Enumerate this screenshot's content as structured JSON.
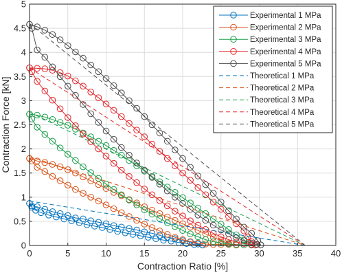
{
  "chart_data": {
    "type": "line",
    "title": "",
    "xlabel": "Contraction Ratio [%]",
    "ylabel": "Contraction Force [kN]",
    "xlim": [
      0,
      40
    ],
    "ylim": [
      0,
      5
    ],
    "xticks": [
      "0",
      "5",
      "10",
      "15",
      "20",
      "25",
      "30",
      "35",
      "40"
    ],
    "yticks": [
      "0",
      "0.5",
      "1",
      "1.5",
      "2",
      "2.5",
      "3",
      "3.5",
      "4",
      "4.5",
      "5"
    ],
    "grid": true,
    "legend_position": "top-right",
    "series": [
      {
        "name": "Experimental 1 MPa",
        "style": "solid-circle",
        "color": "#0072BD",
        "loading": [
          [
            0,
            0.87
          ],
          [
            0.3,
            0.82
          ],
          [
            1,
            0.8
          ],
          [
            2,
            0.75
          ],
          [
            3,
            0.7
          ],
          [
            4,
            0.66
          ],
          [
            5,
            0.62
          ],
          [
            6,
            0.57
          ],
          [
            7,
            0.55
          ],
          [
            8,
            0.51
          ],
          [
            9,
            0.48
          ],
          [
            10,
            0.45
          ],
          [
            11,
            0.41
          ],
          [
            12,
            0.38
          ],
          [
            13,
            0.35
          ],
          [
            14,
            0.32
          ],
          [
            15,
            0.28
          ],
          [
            16,
            0.25
          ],
          [
            17,
            0.21
          ],
          [
            18,
            0.17
          ],
          [
            19,
            0.14
          ],
          [
            20,
            0.1
          ],
          [
            21,
            0.07
          ],
          [
            22,
            0.03
          ],
          [
            22.6,
            0.01
          ]
        ],
        "unloading": [
          [
            22.6,
            0.01
          ],
          [
            21.5,
            0.02
          ],
          [
            20.5,
            0.04
          ],
          [
            19.5,
            0.06
          ],
          [
            18.5,
            0.09
          ],
          [
            17.5,
            0.11
          ],
          [
            16.5,
            0.14
          ],
          [
            15.5,
            0.17
          ],
          [
            14.5,
            0.2
          ],
          [
            13.5,
            0.23
          ],
          [
            12.5,
            0.26
          ],
          [
            11.5,
            0.29
          ],
          [
            10.5,
            0.33
          ],
          [
            9.5,
            0.37
          ],
          [
            8.5,
            0.4
          ],
          [
            7.5,
            0.43
          ],
          [
            6.5,
            0.47
          ],
          [
            5.5,
            0.51
          ],
          [
            4.5,
            0.55
          ],
          [
            3.5,
            0.59
          ],
          [
            2.5,
            0.63
          ],
          [
            1.5,
            0.68
          ],
          [
            0.8,
            0.73
          ],
          [
            0.3,
            0.79
          ],
          [
            0,
            0.87
          ]
        ]
      },
      {
        "name": "Experimental 2 MPa",
        "style": "solid-circle",
        "color": "#D95319",
        "loading": [
          [
            0,
            1.8
          ],
          [
            0.3,
            1.75
          ],
          [
            1,
            1.62
          ],
          [
            2,
            1.53
          ],
          [
            3,
            1.43
          ],
          [
            4,
            1.34
          ],
          [
            5,
            1.25
          ],
          [
            6,
            1.16
          ],
          [
            7,
            1.08
          ],
          [
            8,
            1.0
          ],
          [
            9,
            0.92
          ],
          [
            10,
            0.84
          ],
          [
            11,
            0.76
          ],
          [
            12,
            0.68
          ],
          [
            13,
            0.6
          ],
          [
            14,
            0.52
          ],
          [
            15,
            0.44
          ],
          [
            16,
            0.37
          ],
          [
            17,
            0.3
          ],
          [
            18,
            0.23
          ],
          [
            19,
            0.17
          ],
          [
            20,
            0.12
          ],
          [
            21,
            0.08
          ],
          [
            22,
            0.05
          ],
          [
            23,
            0.03
          ],
          [
            24,
            0.02
          ],
          [
            25,
            0.02
          ],
          [
            26,
            0.02
          ],
          [
            27,
            0.01
          ]
        ],
        "unloading": [
          [
            27,
            0.01
          ],
          [
            26,
            0.04
          ],
          [
            25,
            0.1
          ],
          [
            24,
            0.17
          ],
          [
            23,
            0.24
          ],
          [
            22,
            0.31
          ],
          [
            21,
            0.38
          ],
          [
            20,
            0.45
          ],
          [
            19,
            0.52
          ],
          [
            18,
            0.59
          ],
          [
            17,
            0.66
          ],
          [
            16,
            0.73
          ],
          [
            15,
            0.8
          ],
          [
            14,
            0.88
          ],
          [
            13,
            0.95
          ],
          [
            12,
            1.03
          ],
          [
            11,
            1.1
          ],
          [
            10,
            1.18
          ],
          [
            9,
            1.26
          ],
          [
            8,
            1.34
          ],
          [
            7,
            1.42
          ],
          [
            6,
            1.5
          ],
          [
            5,
            1.57
          ],
          [
            4,
            1.63
          ],
          [
            3,
            1.68
          ],
          [
            2,
            1.72
          ],
          [
            1,
            1.75
          ],
          [
            0,
            1.8
          ]
        ]
      },
      {
        "name": "Experimental 3 MPa",
        "style": "solid-circle",
        "color": "#1B9E4B",
        "loading": [
          [
            0,
            2.72
          ],
          [
            0.3,
            2.62
          ],
          [
            1,
            2.45
          ],
          [
            2,
            2.3
          ],
          [
            3,
            2.16
          ],
          [
            4,
            2.02
          ],
          [
            5,
            1.89
          ],
          [
            6,
            1.76
          ],
          [
            7,
            1.63
          ],
          [
            8,
            1.51
          ],
          [
            9,
            1.39
          ],
          [
            10,
            1.27
          ],
          [
            11,
            1.16
          ],
          [
            12,
            1.05
          ],
          [
            13,
            0.94
          ],
          [
            14,
            0.84
          ],
          [
            15,
            0.74
          ],
          [
            16,
            0.65
          ],
          [
            17,
            0.56
          ],
          [
            18,
            0.47
          ],
          [
            19,
            0.39
          ],
          [
            20,
            0.31
          ],
          [
            21,
            0.24
          ],
          [
            22,
            0.18
          ],
          [
            23,
            0.12
          ],
          [
            24,
            0.08
          ],
          [
            25,
            0.05
          ],
          [
            26,
            0.03
          ],
          [
            27,
            0.02
          ],
          [
            28,
            0.01
          ],
          [
            29,
            0.01
          ]
        ],
        "unloading": [
          [
            29,
            0.01
          ],
          [
            28.5,
            0.05
          ],
          [
            28,
            0.12
          ],
          [
            27,
            0.22
          ],
          [
            26,
            0.33
          ],
          [
            25,
            0.44
          ],
          [
            24,
            0.55
          ],
          [
            23,
            0.66
          ],
          [
            22,
            0.77
          ],
          [
            21,
            0.88
          ],
          [
            20,
            0.99
          ],
          [
            19,
            1.1
          ],
          [
            18,
            1.21
          ],
          [
            17,
            1.32
          ],
          [
            16,
            1.43
          ],
          [
            15,
            1.54
          ],
          [
            14,
            1.65
          ],
          [
            13,
            1.76
          ],
          [
            12,
            1.87
          ],
          [
            11,
            1.97
          ],
          [
            10,
            2.07
          ],
          [
            9,
            2.16
          ],
          [
            8,
            2.25
          ],
          [
            7,
            2.33
          ],
          [
            6,
            2.41
          ],
          [
            5,
            2.49
          ],
          [
            4,
            2.55
          ],
          [
            3,
            2.61
          ],
          [
            2,
            2.66
          ],
          [
            1,
            2.7
          ],
          [
            0,
            2.72
          ]
        ]
      },
      {
        "name": "Experimental 4 MPa",
        "style": "solid-circle",
        "color": "#E3262A",
        "loading": [
          [
            0,
            3.68
          ],
          [
            0.3,
            3.6
          ],
          [
            1,
            3.4
          ],
          [
            2,
            3.2
          ],
          [
            3,
            3.01
          ],
          [
            4,
            2.83
          ],
          [
            5,
            2.65
          ],
          [
            6,
            2.48
          ],
          [
            7,
            2.31
          ],
          [
            8,
            2.15
          ],
          [
            9,
            2.0
          ],
          [
            10,
            1.85
          ],
          [
            11,
            1.7
          ],
          [
            12,
            1.56
          ],
          [
            13,
            1.43
          ],
          [
            14,
            1.3
          ],
          [
            15,
            1.17
          ],
          [
            16,
            1.05
          ],
          [
            17,
            0.93
          ],
          [
            18,
            0.82
          ],
          [
            19,
            0.71
          ],
          [
            20,
            0.61
          ],
          [
            21,
            0.51
          ],
          [
            22,
            0.42
          ],
          [
            23,
            0.33
          ],
          [
            24,
            0.25
          ],
          [
            25,
            0.18
          ],
          [
            26,
            0.12
          ],
          [
            27,
            0.07
          ],
          [
            28,
            0.04
          ],
          [
            29,
            0.02
          ],
          [
            29.5,
            0.01
          ]
        ],
        "unloading": [
          [
            29.5,
            0.01
          ],
          [
            29,
            0.08
          ],
          [
            28.5,
            0.18
          ],
          [
            28,
            0.3
          ],
          [
            27,
            0.45
          ],
          [
            26,
            0.6
          ],
          [
            25,
            0.75
          ],
          [
            24,
            0.9
          ],
          [
            23,
            1.05
          ],
          [
            22,
            1.2
          ],
          [
            21,
            1.35
          ],
          [
            20,
            1.5
          ],
          [
            19,
            1.65
          ],
          [
            18,
            1.8
          ],
          [
            17,
            1.95
          ],
          [
            16,
            2.1
          ],
          [
            15,
            2.25
          ],
          [
            14,
            2.39
          ],
          [
            13,
            2.53
          ],
          [
            12,
            2.67
          ],
          [
            11,
            2.8
          ],
          [
            10,
            2.93
          ],
          [
            9,
            3.06
          ],
          [
            8,
            3.18
          ],
          [
            7,
            3.3
          ],
          [
            6,
            3.41
          ],
          [
            5,
            3.51
          ],
          [
            4,
            3.58
          ],
          [
            3,
            3.63
          ],
          [
            2,
            3.66
          ],
          [
            1,
            3.67
          ],
          [
            0,
            3.68
          ]
        ]
      },
      {
        "name": "Experimental 5 MPa",
        "style": "solid-circle",
        "color": "#4D4D4D",
        "loading": [
          [
            0,
            4.58
          ],
          [
            0.3,
            4.5
          ],
          [
            1,
            4.05
          ],
          [
            2,
            3.9
          ],
          [
            3,
            3.7
          ],
          [
            4,
            3.5
          ],
          [
            5,
            3.3
          ],
          [
            6,
            3.11
          ],
          [
            7,
            2.92
          ],
          [
            8,
            2.73
          ],
          [
            9,
            2.55
          ],
          [
            10,
            2.37
          ],
          [
            11,
            2.2
          ],
          [
            12,
            2.03
          ],
          [
            13,
            1.87
          ],
          [
            14,
            1.71
          ],
          [
            15,
            1.56
          ],
          [
            16,
            1.41
          ],
          [
            17,
            1.27
          ],
          [
            18,
            1.13
          ],
          [
            19,
            1.0
          ],
          [
            20,
            0.87
          ],
          [
            21,
            0.75
          ],
          [
            22,
            0.63
          ],
          [
            23,
            0.52
          ],
          [
            24,
            0.42
          ],
          [
            25,
            0.32
          ],
          [
            26,
            0.24
          ],
          [
            27,
            0.16
          ],
          [
            28,
            0.1
          ],
          [
            29,
            0.05
          ],
          [
            29.7,
            0.02
          ],
          [
            30.2,
            0.01
          ]
        ],
        "unloading": [
          [
            30.2,
            0.01
          ],
          [
            29.8,
            0.1
          ],
          [
            29,
            0.25
          ],
          [
            28,
            0.38
          ],
          [
            27,
            0.55
          ],
          [
            26,
            0.72
          ],
          [
            25,
            0.9
          ],
          [
            24,
            1.08
          ],
          [
            23,
            1.26
          ],
          [
            22,
            1.44
          ],
          [
            21,
            1.62
          ],
          [
            20,
            1.8
          ],
          [
            19,
            1.98
          ],
          [
            18,
            2.16
          ],
          [
            17,
            2.33
          ],
          [
            16,
            2.5
          ],
          [
            15,
            2.67
          ],
          [
            14,
            2.84
          ],
          [
            13,
            3.0
          ],
          [
            12,
            3.16
          ],
          [
            11,
            3.31
          ],
          [
            10,
            3.46
          ],
          [
            9,
            3.6
          ],
          [
            8,
            3.74
          ],
          [
            7,
            3.88
          ],
          [
            6,
            4.01
          ],
          [
            5,
            4.14
          ],
          [
            4,
            4.26
          ],
          [
            3,
            4.37
          ],
          [
            2,
            4.46
          ],
          [
            1,
            4.53
          ],
          [
            0,
            4.58
          ]
        ]
      },
      {
        "name": "Theoretical 1 MPa",
        "style": "dashed",
        "color": "#0072BD",
        "points": [
          [
            0,
            0.92
          ],
          [
            36,
            0.0
          ]
        ]
      },
      {
        "name": "Theoretical 2 MPa",
        "style": "dashed",
        "color": "#D95319",
        "points": [
          [
            0,
            1.84
          ],
          [
            36,
            0.0
          ]
        ]
      },
      {
        "name": "Theoretical 3 MPa",
        "style": "dashed",
        "color": "#1B9E4B",
        "points": [
          [
            0,
            2.76
          ],
          [
            36,
            0.0
          ]
        ]
      },
      {
        "name": "Theoretical 4 MPa",
        "style": "dashed",
        "color": "#E3262A",
        "points": [
          [
            0,
            3.68
          ],
          [
            36,
            0.0
          ]
        ]
      },
      {
        "name": "Theoretical 5 MPa",
        "style": "dashed",
        "color": "#4D4D4D",
        "points": [
          [
            0,
            4.6
          ],
          [
            36,
            0.0
          ]
        ]
      }
    ]
  }
}
